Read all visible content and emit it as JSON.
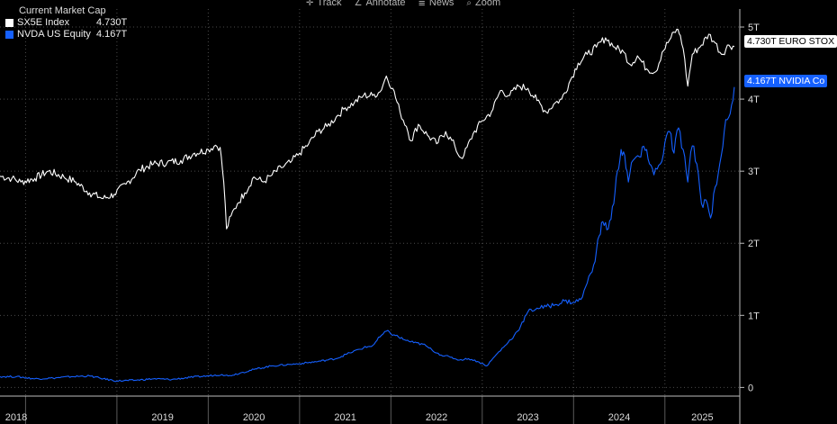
{
  "toolbar": {
    "items": [
      {
        "icon": "crosshair-icon",
        "glyph": "✛",
        "label": "Track"
      },
      {
        "icon": "pencil-icon",
        "glyph": "∠",
        "label": "Annotate"
      },
      {
        "icon": "news-icon",
        "glyph": "≣",
        "label": "News"
      },
      {
        "icon": "magnifier-icon",
        "glyph": "⌕",
        "label": "Zoom"
      }
    ]
  },
  "legend": {
    "title": "Current Market Cap",
    "entries": [
      {
        "name": "SX5E Index",
        "value": "4.730T",
        "color": "#ffffff"
      },
      {
        "name": "NVDA US Equity",
        "value": "4.167T",
        "color": "#1560ff"
      }
    ]
  },
  "tags": {
    "sx5e": "4.730T EURO STOX",
    "nvda": "4.167T NVIDIA Co"
  },
  "chart_data": {
    "type": "line",
    "y_tick_labels": [
      "0",
      "1T",
      "2T",
      "3T",
      "4T",
      "5T"
    ],
    "y_ticks": [
      0,
      1,
      2,
      3,
      4,
      5
    ],
    "x_tick_labels": [
      "2018",
      "2019",
      "2020",
      "2021",
      "2022",
      "2023",
      "2024",
      "2025"
    ],
    "x_ticks": [
      2018.0,
      2019.0,
      2020.0,
      2021.0,
      2022.0,
      2023.0,
      2024.0,
      2025.0
    ],
    "xlim": [
      2017.72,
      2025.82
    ],
    "ylim": [
      -0.12,
      5.25
    ],
    "grid": true,
    "legend_position": "top-left",
    "series": [
      {
        "name": "SX5E Index",
        "color": "#ffffff",
        "x": [
          2017.72,
          2017.85,
          2017.95,
          2018.1,
          2018.25,
          2018.42,
          2018.55,
          2018.7,
          2018.85,
          2018.97,
          2019.1,
          2019.25,
          2019.4,
          2019.55,
          2019.7,
          2019.85,
          2020.0,
          2020.08,
          2020.13,
          2020.17,
          2020.2,
          2020.25,
          2020.32,
          2020.4,
          2020.5,
          2020.6,
          2020.7,
          2020.8,
          2020.9,
          2021.0,
          2021.1,
          2021.2,
          2021.3,
          2021.4,
          2021.5,
          2021.6,
          2021.7,
          2021.8,
          2021.88,
          2021.95,
          2022.02,
          2022.1,
          2022.17,
          2022.22,
          2022.3,
          2022.4,
          2022.5,
          2022.6,
          2022.7,
          2022.75,
          2022.8,
          2022.9,
          2023.0,
          2023.1,
          2023.2,
          2023.3,
          2023.4,
          2023.5,
          2023.6,
          2023.7,
          2023.8,
          2023.87,
          2023.95,
          2024.05,
          2024.15,
          2024.25,
          2024.35,
          2024.45,
          2024.55,
          2024.62,
          2024.7,
          2024.8,
          2024.9,
          2024.97,
          2025.05,
          2025.13,
          2025.17,
          2025.2,
          2025.25,
          2025.3,
          2025.4,
          2025.48,
          2025.55,
          2025.62,
          2025.7,
          2025.76
        ],
        "values": [
          2.93,
          2.9,
          2.85,
          2.9,
          3.0,
          2.92,
          2.85,
          2.7,
          2.62,
          2.68,
          2.82,
          3.02,
          3.1,
          3.12,
          3.15,
          3.25,
          3.3,
          3.36,
          3.33,
          2.85,
          2.2,
          2.38,
          2.55,
          2.7,
          2.92,
          2.85,
          2.95,
          3.05,
          3.12,
          3.25,
          3.38,
          3.55,
          3.62,
          3.75,
          3.88,
          3.95,
          4.05,
          4.05,
          4.1,
          4.32,
          4.15,
          3.82,
          3.62,
          3.42,
          3.65,
          3.5,
          3.38,
          3.55,
          3.35,
          3.2,
          3.22,
          3.52,
          3.7,
          3.82,
          4.12,
          4.05,
          4.18,
          4.15,
          3.98,
          3.82,
          3.95,
          4.0,
          4.22,
          4.5,
          4.62,
          4.72,
          4.85,
          4.72,
          4.65,
          4.48,
          4.6,
          4.42,
          4.38,
          4.65,
          4.82,
          4.97,
          4.88,
          4.7,
          4.18,
          4.62,
          4.75,
          4.9,
          4.78,
          4.62,
          4.75,
          4.73
        ]
      },
      {
        "name": "NVDA US Equity",
        "color": "#1560ff",
        "x": [
          2017.72,
          2017.9,
          2018.1,
          2018.3,
          2018.5,
          2018.7,
          2018.85,
          2019.0,
          2019.2,
          2019.4,
          2019.6,
          2019.8,
          2020.0,
          2020.15,
          2020.22,
          2020.35,
          2020.5,
          2020.7,
          2020.9,
          2021.0,
          2021.2,
          2021.4,
          2021.55,
          2021.7,
          2021.8,
          2021.88,
          2021.95,
          2022.05,
          2022.15,
          2022.25,
          2022.35,
          2022.45,
          2022.55,
          2022.65,
          2022.75,
          2022.85,
          2022.95,
          2023.05,
          2023.15,
          2023.25,
          2023.35,
          2023.42,
          2023.5,
          2023.6,
          2023.7,
          2023.8,
          2023.9,
          2024.0,
          2024.08,
          2024.15,
          2024.22,
          2024.28,
          2024.32,
          2024.38,
          2024.44,
          2024.48,
          2024.52,
          2024.56,
          2024.6,
          2024.65,
          2024.72,
          2024.8,
          2024.88,
          2024.95,
          2025.0,
          2025.05,
          2025.1,
          2025.15,
          2025.2,
          2025.25,
          2025.3,
          2025.35,
          2025.4,
          2025.45,
          2025.5,
          2025.55,
          2025.6,
          2025.65,
          2025.7,
          2025.76
        ],
        "values": [
          0.15,
          0.15,
          0.12,
          0.13,
          0.15,
          0.16,
          0.12,
          0.09,
          0.1,
          0.12,
          0.11,
          0.14,
          0.16,
          0.18,
          0.16,
          0.2,
          0.25,
          0.3,
          0.32,
          0.33,
          0.36,
          0.4,
          0.48,
          0.55,
          0.58,
          0.7,
          0.78,
          0.72,
          0.66,
          0.62,
          0.6,
          0.52,
          0.45,
          0.42,
          0.38,
          0.4,
          0.36,
          0.3,
          0.45,
          0.58,
          0.72,
          0.85,
          1.05,
          1.1,
          1.12,
          1.15,
          1.2,
          1.18,
          1.22,
          1.45,
          1.7,
          2.1,
          2.3,
          2.2,
          2.55,
          3.0,
          3.3,
          3.22,
          2.85,
          3.15,
          3.2,
          3.3,
          2.95,
          3.1,
          3.4,
          3.55,
          3.25,
          3.6,
          3.3,
          2.85,
          3.35,
          3.1,
          2.55,
          2.6,
          2.35,
          2.78,
          3.1,
          3.55,
          3.75,
          4.167
        ]
      }
    ]
  }
}
